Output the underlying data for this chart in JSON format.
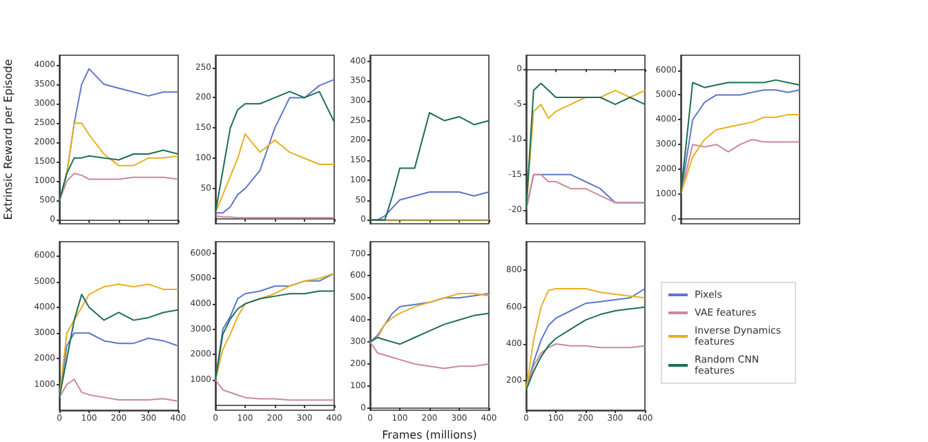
{
  "chart_data": [
    {
      "type": "line",
      "ylabel": "Extrinsic Reward per Episode",
      "x": [
        0,
        25,
        50,
        75,
        100,
        150,
        200,
        250,
        300,
        350,
        400
      ],
      "xlim": [
        0,
        400
      ],
      "xticks": [
        0,
        100,
        200,
        300,
        400
      ],
      "ylim": [
        -100,
        4250
      ],
      "yticks": [
        0,
        500,
        1000,
        1500,
        2000,
        2500,
        3000,
        3500,
        4000
      ],
      "tick_labels": "y",
      "series": [
        {
          "color": "#5b78c9",
          "values": [
            500,
            1200,
            2500,
            3500,
            3900,
            3500,
            3400,
            3300,
            3200,
            3300,
            3300
          ]
        },
        {
          "color": "#c98a9a",
          "values": [
            500,
            1000,
            1200,
            1150,
            1050,
            1050,
            1050,
            1100,
            1100,
            1100,
            1050
          ]
        },
        {
          "color": "#e8b020",
          "values": [
            500,
            1200,
            2500,
            2500,
            2200,
            1700,
            1400,
            1400,
            1600,
            1600,
            1650
          ]
        },
        {
          "color": "#1a6e54",
          "values": [
            500,
            1200,
            1600,
            1600,
            1650,
            1600,
            1550,
            1700,
            1700,
            1800,
            1700
          ]
        }
      ]
    },
    {
      "type": "line",
      "x": [
        0,
        25,
        50,
        75,
        100,
        150,
        200,
        250,
        300,
        350,
        400
      ],
      "xlim": [
        0,
        400
      ],
      "xticks": [
        0,
        100,
        200,
        300,
        400
      ],
      "ylim": [
        -8,
        270
      ],
      "yticks": [
        50,
        100,
        150,
        200,
        250
      ],
      "tick_labels": "y",
      "series": [
        {
          "color": "#5b78c9",
          "values": [
            10,
            10,
            20,
            40,
            50,
            80,
            150,
            200,
            200,
            220,
            230
          ]
        },
        {
          "color": "#c98a9a",
          "values": [
            5,
            3,
            3,
            2,
            2,
            2,
            2,
            2,
            2,
            2,
            2
          ]
        },
        {
          "color": "#e8b020",
          "values": [
            10,
            40,
            70,
            100,
            140,
            110,
            130,
            110,
            100,
            90,
            90
          ]
        },
        {
          "color": "#1a6e54",
          "values": [
            10,
            80,
            150,
            180,
            190,
            190,
            200,
            210,
            200,
            210,
            160
          ]
        }
      ]
    },
    {
      "type": "line",
      "x": [
        0,
        25,
        50,
        75,
        100,
        150,
        200,
        250,
        300,
        350,
        400
      ],
      "xlim": [
        0,
        400
      ],
      "xticks": [
        0,
        100,
        200,
        300,
        400
      ],
      "ylim": [
        -10,
        415
      ],
      "yticks": [
        0,
        50,
        100,
        150,
        200,
        250,
        300,
        350,
        400
      ],
      "tick_labels": "y",
      "series": [
        {
          "color": "#5b78c9",
          "values": [
            0,
            0,
            10,
            30,
            50,
            60,
            70,
            70,
            70,
            60,
            70
          ]
        },
        {
          "color": "#e8b020",
          "values": [
            0,
            0,
            0,
            0,
            0,
            0,
            0,
            0,
            0,
            0,
            0
          ]
        },
        {
          "color": "#1a6e54",
          "values": [
            0,
            0,
            0,
            60,
            130,
            130,
            270,
            250,
            260,
            240,
            250
          ]
        }
      ]
    },
    {
      "type": "line",
      "x": [
        0,
        25,
        50,
        75,
        100,
        150,
        200,
        250,
        300,
        350,
        400
      ],
      "xlim": [
        0,
        400
      ],
      "xticks": [
        0,
        100,
        200,
        300,
        400
      ],
      "ylim": [
        -22,
        2
      ],
      "yticks": [
        -20,
        -15,
        -10,
        -5,
        0
      ],
      "tick_labels": "y",
      "series": [
        {
          "color": "#5b78c9",
          "values": [
            -20,
            -15,
            -15,
            -15,
            -15,
            -15,
            -16,
            -17,
            -19,
            -19,
            -19
          ]
        },
        {
          "color": "#c98a9a",
          "values": [
            -20,
            -15,
            -15,
            -16,
            -16,
            -17,
            -17,
            -18,
            -19,
            -19,
            -19
          ]
        },
        {
          "color": "#e8b020",
          "values": [
            -20,
            -6,
            -5,
            -7,
            -6,
            -5,
            -4,
            -4,
            -3,
            -4,
            -3
          ]
        },
        {
          "color": "#1a6e54",
          "values": [
            -20,
            -3,
            -2,
            -3,
            -4,
            -4,
            -4,
            -4,
            -5,
            -4,
            -5
          ]
        }
      ]
    },
    {
      "type": "line",
      "categories": [
        null,
        null,
        null,
        null,
        null,
        null,
        null,
        null,
        null,
        null,
        null
      ],
      "ylim": [
        -200,
        6600
      ],
      "yticks": [
        0,
        1000,
        2000,
        3000,
        4000,
        5000,
        6000
      ],
      "tick_labels": "y",
      "series": [
        {
          "color": "#5b78c9",
          "values": [
            1000,
            4000,
            4700,
            5000,
            5000,
            5000,
            5100,
            5200,
            5200,
            5100,
            5200
          ]
        },
        {
          "color": "#c98a9a",
          "values": [
            1000,
            3000,
            2900,
            3000,
            2700,
            3000,
            3200,
            3100,
            3100,
            3100,
            3100
          ]
        },
        {
          "color": "#e8b020",
          "values": [
            1000,
            2500,
            3200,
            3600,
            3700,
            3800,
            3900,
            4100,
            4100,
            4200,
            4200
          ]
        },
        {
          "color": "#1a6e54",
          "values": [
            1000,
            5500,
            5300,
            5400,
            5500,
            5500,
            5500,
            5500,
            5600,
            5500,
            5400
          ]
        }
      ]
    },
    {
      "type": "line",
      "x": [
        0,
        25,
        50,
        75,
        100,
        150,
        200,
        250,
        300,
        350,
        400
      ],
      "xlim": [
        0,
        400
      ],
      "xticks": [
        0,
        100,
        200,
        300,
        400
      ],
      "ylim": [
        0,
        6550
      ],
      "yticks": [
        1000,
        2000,
        3000,
        4000,
        5000,
        6000
      ],
      "series": [
        {
          "color": "#5b78c9",
          "values": [
            500,
            2500,
            3000,
            3000,
            3000,
            2700,
            2600,
            2600,
            2800,
            2700,
            2500
          ]
        },
        {
          "color": "#c98a9a",
          "values": [
            500,
            1000,
            1200,
            700,
            600,
            500,
            400,
            400,
            400,
            450,
            350
          ]
        },
        {
          "color": "#e8b020",
          "values": [
            500,
            3000,
            3500,
            4000,
            4500,
            4800,
            4900,
            4800,
            4900,
            4700,
            4700
          ]
        },
        {
          "color": "#1a6e54",
          "values": [
            500,
            2000,
            3500,
            4500,
            4000,
            3500,
            3800,
            3500,
            3600,
            3800,
            3900
          ]
        }
      ]
    },
    {
      "type": "line",
      "x": [
        0,
        25,
        50,
        75,
        100,
        150,
        200,
        250,
        300,
        350,
        400
      ],
      "xlim": [
        0,
        400
      ],
      "xticks": [
        0,
        100,
        200,
        300,
        400
      ],
      "ylim": [
        -200,
        6450
      ],
      "yticks": [
        1000,
        2000,
        3000,
        4000,
        5000,
        6000
      ],
      "series": [
        {
          "color": "#5b78c9",
          "values": [
            1000,
            3000,
            3500,
            4200,
            4400,
            4500,
            4700,
            4700,
            4900,
            4900,
            5200
          ]
        },
        {
          "color": "#c98a9a",
          "values": [
            1000,
            600,
            500,
            400,
            300,
            250,
            250,
            200,
            200,
            200,
            200
          ]
        },
        {
          "color": "#e8b020",
          "values": [
            1000,
            2200,
            2800,
            3500,
            4000,
            4200,
            4400,
            4700,
            4900,
            5000,
            5200
          ]
        },
        {
          "color": "#1a6e54",
          "values": [
            1000,
            2800,
            3400,
            3800,
            4000,
            4200,
            4300,
            4400,
            4400,
            4500,
            4500
          ]
        }
      ]
    },
    {
      "type": "line",
      "xlabel": "Frames (millions)",
      "x": [
        0,
        25,
        50,
        75,
        100,
        150,
        200,
        250,
        300,
        350,
        400
      ],
      "xlim": [
        0,
        400
      ],
      "xticks": [
        0,
        100,
        200,
        300,
        400
      ],
      "ylim": [
        -10,
        755
      ],
      "yticks": [
        0,
        100,
        200,
        300,
        400,
        500,
        600,
        700
      ],
      "series": [
        {
          "color": "#5b78c9",
          "values": [
            300,
            330,
            380,
            430,
            460,
            470,
            480,
            500,
            500,
            510,
            520
          ]
        },
        {
          "color": "#c98a9a",
          "values": [
            300,
            250,
            240,
            230,
            220,
            200,
            190,
            180,
            190,
            190,
            200
          ]
        },
        {
          "color": "#e8b020",
          "values": [
            300,
            320,
            380,
            410,
            430,
            460,
            480,
            500,
            520,
            520,
            510
          ]
        },
        {
          "color": "#1a6e54",
          "values": [
            300,
            320,
            310,
            300,
            290,
            320,
            350,
            380,
            400,
            420,
            430
          ]
        }
      ]
    },
    {
      "type": "line",
      "legend": "right",
      "x": [
        0,
        25,
        50,
        75,
        100,
        150,
        200,
        250,
        300,
        350,
        400
      ],
      "xlim": [
        0,
        400
      ],
      "xticks": [
        0,
        100,
        200,
        300,
        400
      ],
      "ylim": [
        40,
        955
      ],
      "yticks": [
        200,
        400,
        600,
        800
      ],
      "series": [
        {
          "name": "Pixels",
          "color": "#5b78c9",
          "values": [
            150,
            300,
            420,
            500,
            540,
            580,
            620,
            630,
            640,
            650,
            700
          ]
        },
        {
          "name": "VAE features",
          "color": "#c98a9a",
          "values": [
            150,
            280,
            350,
            380,
            400,
            390,
            390,
            380,
            380,
            380,
            390
          ]
        },
        {
          "name": "Inverse Dynamics features",
          "color": "#e8b020",
          "values": [
            150,
            420,
            600,
            690,
            700,
            700,
            700,
            680,
            670,
            660,
            650
          ]
        },
        {
          "name": "Random CNN features",
          "color": "#1a6e54",
          "values": [
            150,
            250,
            330,
            390,
            430,
            480,
            530,
            560,
            580,
            590,
            600
          ]
        }
      ]
    }
  ]
}
